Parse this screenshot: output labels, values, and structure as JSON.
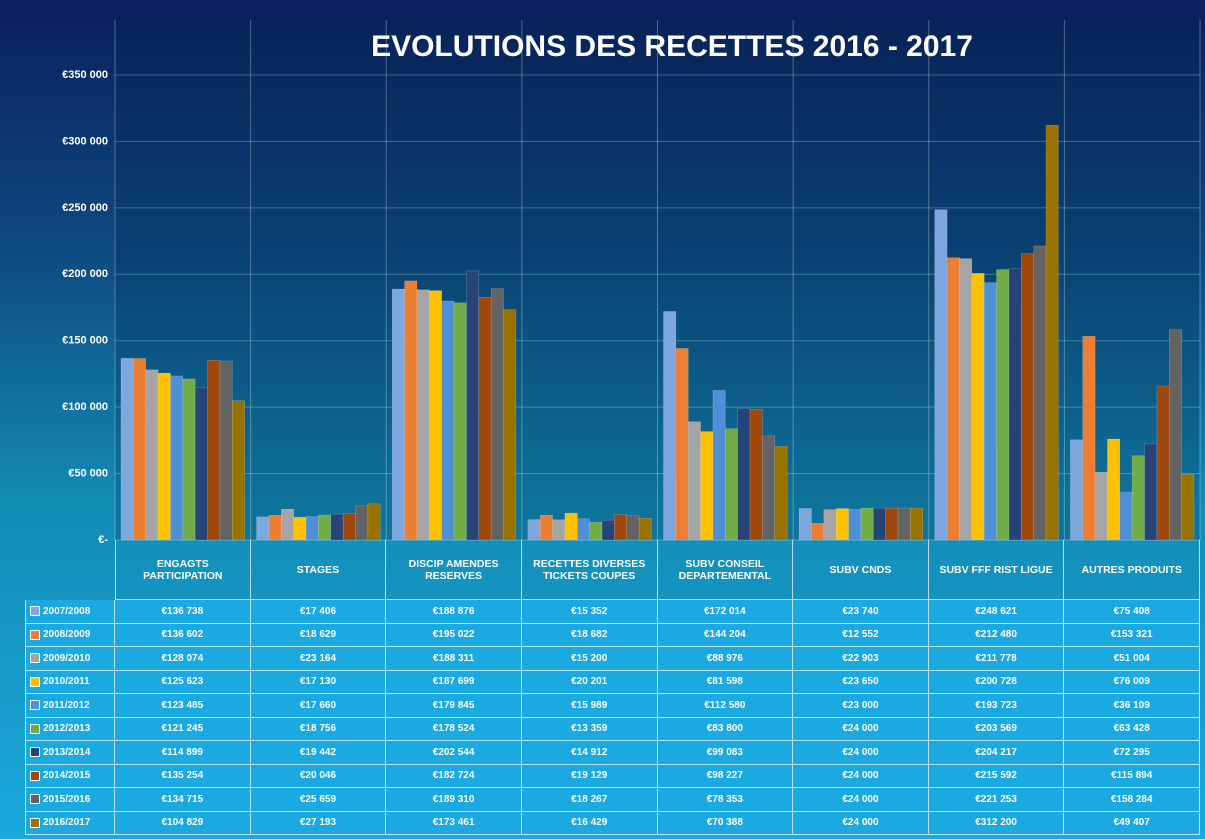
{
  "chart_data": {
    "type": "bar",
    "title": "EVOLUTIONS DES RECETTES 2016 - 2017",
    "categories": [
      "ENGAGTS PARTICIPATION",
      "STAGES",
      "DISCIP AMENDES RESERVES",
      "RECETTES DIVERSES TICKETS COUPES",
      "SUBV CONSEIL DEPARTEMENTAL",
      "SUBV CNDS",
      "SUBV FFF RIST LIGUE",
      "AUTRES PRODUITS"
    ],
    "series": [
      {
        "name": "2007/2008",
        "color": "#7da7dd",
        "values": [
          136738,
          17406,
          188876,
          15352,
          172014,
          23740,
          248621,
          75408
        ],
        "value_labels": [
          "€136 738",
          "€17 406",
          "€188 876",
          "€15 352",
          "€172 014",
          "€23 740",
          "€248 621",
          "€75 408"
        ]
      },
      {
        "name": "2008/2009",
        "color": "#ed7d31",
        "values": [
          136602,
          18629,
          195022,
          18682,
          144204,
          12552,
          212480,
          153321
        ],
        "value_labels": [
          "€136 602",
          "€18 629",
          "€195 022",
          "€18 682",
          "€144 204",
          "€12 552",
          "€212 480",
          "€153 321"
        ]
      },
      {
        "name": "2009/2010",
        "color": "#a5a5a5",
        "values": [
          128074,
          23164,
          188311,
          15200,
          88976,
          22903,
          211778,
          51004
        ],
        "value_labels": [
          "€128 074",
          "€23 164",
          "€188 311",
          "€15 200",
          "€88 976",
          "€22 903",
          "€211 778",
          "€51 004"
        ]
      },
      {
        "name": "2010/2011",
        "color": "#ffc000",
        "values": [
          125623,
          17130,
          187699,
          20201,
          81598,
          23650,
          200728,
          76009
        ],
        "value_labels": [
          "€125 623",
          "€17 130",
          "€187 699",
          "€20 201",
          "€81 598",
          "€23 650",
          "€200 728",
          "€76 009"
        ]
      },
      {
        "name": "2011/2012",
        "color": "#4f8fd6",
        "values": [
          123485,
          17660,
          179845,
          15989,
          112580,
          23000,
          193723,
          36109
        ],
        "value_labels": [
          "€123 485",
          "€17 660",
          "€179 845",
          "€15 989",
          "€112 580",
          "€23 000",
          "€193 723",
          "€36 109"
        ]
      },
      {
        "name": "2012/2013",
        "color": "#70ad47",
        "values": [
          121245,
          18756,
          178524,
          13359,
          83800,
          24000,
          203569,
          63428
        ],
        "value_labels": [
          "€121 245",
          "€18 756",
          "€178 524",
          "€13 359",
          "€83 800",
          "€24 000",
          "€203 569",
          "€63 428"
        ]
      },
      {
        "name": "2013/2014",
        "color": "#264478",
        "values": [
          114899,
          19442,
          202544,
          14912,
          99083,
          24000,
          204217,
          72295
        ],
        "value_labels": [
          "€114 899",
          "€19 442",
          "€202 544",
          "€14 912",
          "€99 083",
          "€24 000",
          "€204 217",
          "€72 295"
        ]
      },
      {
        "name": "2014/2015",
        "color": "#9e480e",
        "values": [
          135254,
          20046,
          182724,
          19129,
          98227,
          24000,
          215592,
          115894
        ],
        "value_labels": [
          "€135 254",
          "€20 046",
          "€182 724",
          "€19 129",
          "€98 227",
          "€24 000",
          "€215 592",
          "€115 894"
        ]
      },
      {
        "name": "2015/2016",
        "color": "#636363",
        "values": [
          134715,
          25659,
          189310,
          18267,
          78353,
          24000,
          221253,
          158284
        ],
        "value_labels": [
          "€134 715",
          "€25 659",
          "€189 310",
          "€18 267",
          "€78 353",
          "€24 000",
          "€221 253",
          "€158 284"
        ]
      },
      {
        "name": "2016/2017",
        "color": "#997300",
        "values": [
          104829,
          27193,
          173461,
          16429,
          70388,
          24000,
          312200,
          49407
        ],
        "value_labels": [
          "€104 829",
          "€27 193",
          "€173 461",
          "€16 429",
          "€70 388",
          "€24 000",
          "€312 200",
          "€49 407"
        ]
      }
    ],
    "ylim": [
      0,
      350000
    ],
    "yticks": [
      {
        "value": 0,
        "label": "€-"
      },
      {
        "value": 50000,
        "label": "€50 000"
      },
      {
        "value": 100000,
        "label": "€100 000"
      },
      {
        "value": 150000,
        "label": "€150 000"
      },
      {
        "value": 200000,
        "label": "€200 000"
      },
      {
        "value": 250000,
        "label": "€250 000"
      },
      {
        "value": 300000,
        "label": "€300 000"
      },
      {
        "value": 350000,
        "label": "€350 000"
      }
    ],
    "grid": true
  }
}
